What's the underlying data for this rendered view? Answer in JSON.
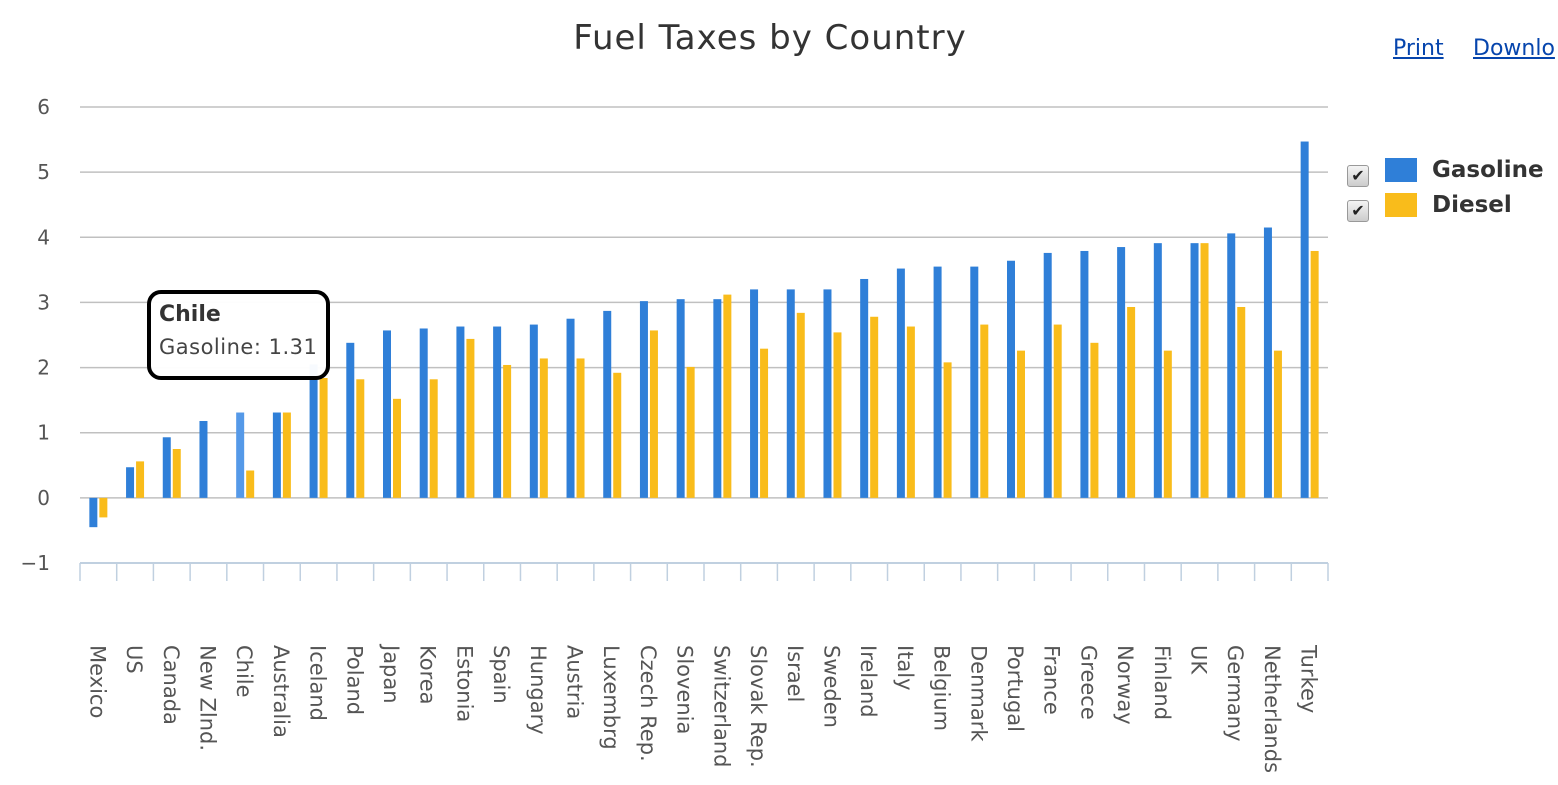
{
  "header": {
    "print_label": "Print",
    "download_label": "Downlo"
  },
  "colors": {
    "gasoline": "#2f7fd8",
    "diesel": "#f9bc1b",
    "highlight": "#5599e8"
  },
  "tooltip": {
    "title": "Chile",
    "text": "Gasoline: 1.31"
  },
  "chart_data": {
    "type": "bar",
    "title": "Fuel Taxes by Country",
    "xlabel": "",
    "ylabel": "",
    "ylim": [
      -1,
      6
    ],
    "yticks": [
      "-1",
      "0",
      "1",
      "2",
      "3",
      "4",
      "5",
      "6"
    ],
    "grid": true,
    "legend": "right",
    "categories": [
      "Mexico",
      "US",
      "Canada",
      "New Zlnd.",
      "Chile",
      "Australia",
      "Iceland",
      "Poland",
      "Japan",
      "Korea",
      "Estonia",
      "Spain",
      "Hungary",
      "Austria",
      "Luxembrg",
      "Czech Rep.",
      "Slovenia",
      "Switzerland",
      "Slovak Rep.",
      "Israel",
      "Sweden",
      "Ireland",
      "Italy",
      "Belgium",
      "Denmark",
      "Portugal",
      "France",
      "Greece",
      "Norway",
      "Finland",
      "UK",
      "Germany",
      "Netherlands",
      "Turkey"
    ],
    "series": [
      {
        "name": "Gasoline",
        "values": [
          -0.45,
          0.47,
          0.93,
          1.18,
          1.31,
          1.31,
          2.05,
          2.38,
          2.57,
          2.6,
          2.63,
          2.63,
          2.66,
          2.75,
          2.87,
          3.02,
          3.05,
          3.05,
          3.2,
          3.2,
          3.2,
          3.36,
          3.52,
          3.55,
          3.55,
          3.64,
          3.76,
          3.79,
          3.85,
          3.91,
          3.91,
          4.06,
          4.15,
          5.47
        ]
      },
      {
        "name": "Diesel",
        "values": [
          -0.3,
          0.56,
          0.75,
          0,
          0.42,
          1.31,
          1.84,
          1.82,
          1.52,
          1.82,
          2.44,
          2.04,
          2.14,
          2.14,
          1.92,
          2.57,
          2.01,
          3.12,
          2.29,
          2.84,
          2.54,
          2.78,
          2.63,
          2.08,
          2.66,
          2.26,
          2.66,
          2.38,
          2.93,
          2.26,
          3.91,
          2.93,
          2.26,
          3.79
        ]
      }
    ]
  }
}
